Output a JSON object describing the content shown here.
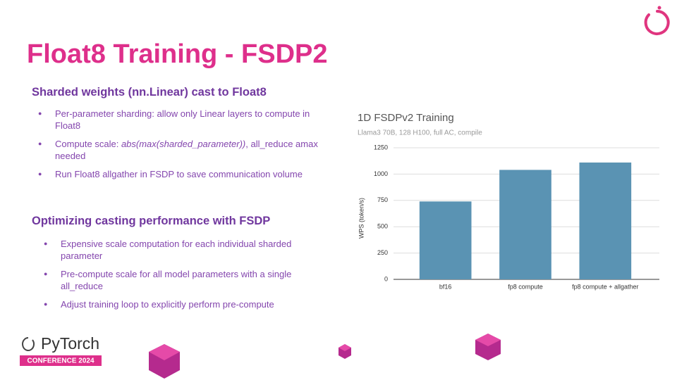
{
  "title": "Float8 Training - FSDP2",
  "section1": {
    "heading": "Sharded weights (nn.Linear) cast to Float8",
    "bullets": [
      {
        "parts": [
          "Per-parameter sharding: allow only Linear layers to compute in Float8"
        ]
      },
      {
        "parts": [
          "Compute scale: ",
          "abs(max(sharded_parameter))",
          ", all_reduce amax needed"
        ]
      },
      {
        "parts": [
          "Run Float8 allgather in FSDP to save communication volume"
        ]
      }
    ]
  },
  "section2": {
    "heading": "Optimizing casting performance with FSDP",
    "bullets": [
      {
        "parts": [
          "Expensive scale computation for each individual sharded parameter"
        ]
      },
      {
        "parts": [
          "Pre-compute scale for all model parameters with a single all_reduce"
        ]
      },
      {
        "parts": [
          "Adjust training loop to explicitly perform pre-compute"
        ]
      }
    ]
  },
  "footer": {
    "brand": "PyTorch",
    "badge": "CONFERENCE 2024"
  },
  "chart_data": {
    "type": "bar",
    "title": "1D FSDPv2 Training",
    "subtitle": "Llama3 70B, 128 H100, full AC, compile",
    "y_label": "WPS (token/s)",
    "categories": [
      "bf16",
      "fp8 compute",
      "fp8 compute + allgather"
    ],
    "values": [
      740,
      1040,
      1110
    ],
    "color": "#5a93b3",
    "ylim": [
      0,
      1250
    ],
    "yticks": [
      0,
      250,
      500,
      750,
      1000,
      1250
    ],
    "grid": true
  }
}
